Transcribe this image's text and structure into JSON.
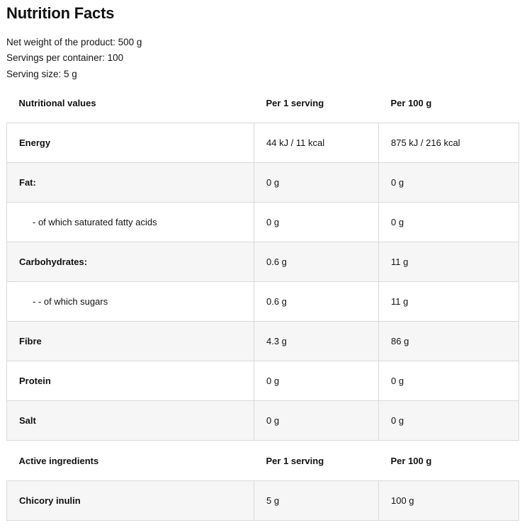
{
  "title": "Nutrition Facts",
  "meta": {
    "net_weight": "Net weight of the product: 500 g",
    "servings": "Servings per container: 100",
    "serving_size": "Serving size: 5 g"
  },
  "nutrition": {
    "headers": [
      "Nutritional values",
      "Per 1 serving",
      "Per 100 g"
    ],
    "rows": [
      {
        "name": "Energy",
        "per_serving": "44 kJ / 11 kcal",
        "per_100g": "875 kJ / 216 kcal"
      },
      {
        "name": "Fat:",
        "per_serving": "0 g",
        "per_100g": "0 g"
      },
      {
        "name": "- of which saturated fatty acids",
        "per_serving": "0 g",
        "per_100g": "0 g"
      },
      {
        "name": "Carbohydrates:",
        "per_serving": "0.6 g",
        "per_100g": "11 g"
      },
      {
        "name": "- - of which sugars",
        "per_serving": "0.6 g",
        "per_100g": "11 g"
      },
      {
        "name": "Fibre",
        "per_serving": "4.3 g",
        "per_100g": "86 g"
      },
      {
        "name": "Protein",
        "per_serving": "0 g",
        "per_100g": "0 g"
      },
      {
        "name": "Salt",
        "per_serving": "0 g",
        "per_100g": "0 g"
      }
    ]
  },
  "active": {
    "headers": [
      "Active ingredients",
      "Per 1 serving",
      "Per 100 g"
    ],
    "rows": [
      {
        "name": "Chicory inulin",
        "per_serving": "5 g",
        "per_100g": "100 g"
      }
    ]
  }
}
